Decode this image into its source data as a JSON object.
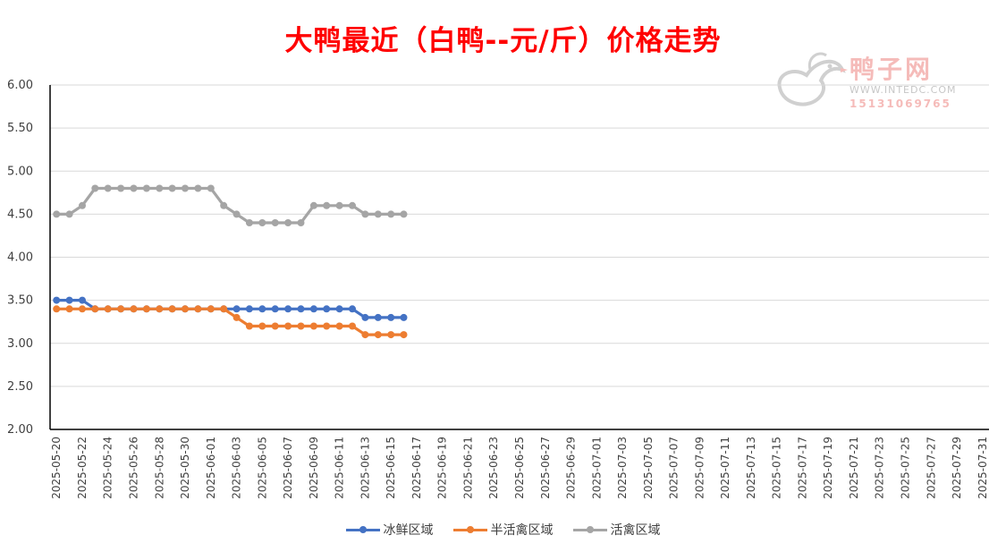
{
  "chart_data": {
    "type": "line",
    "title": "大鸭最近（白鸭--元/斤）价格走势",
    "xlabel": "",
    "ylabel": "",
    "ylim": [
      2.0,
      6.0
    ],
    "yticks": [
      "2.00",
      "2.50",
      "3.00",
      "3.50",
      "4.00",
      "4.50",
      "5.00",
      "5.50",
      "6.00"
    ],
    "x_range": [
      "2025-05-20",
      "2025-07-31"
    ],
    "x_tick_labels": [
      "2025-05-20",
      "2025-05-22",
      "2025-05-24",
      "2025-05-26",
      "2025-05-28",
      "2025-05-30",
      "2025-06-01",
      "2025-06-03",
      "2025-06-05",
      "2025-06-07",
      "2025-06-09",
      "2025-06-11",
      "2025-06-13",
      "2025-06-15",
      "2025-06-17",
      "2025-06-19",
      "2025-06-21",
      "2025-06-23",
      "2025-06-25",
      "2025-06-27",
      "2025-06-29",
      "2025-07-01",
      "2025-07-03",
      "2025-07-05",
      "2025-07-07",
      "2025-07-09",
      "2025-07-11",
      "2025-07-13",
      "2025-07-15",
      "2025-07-17",
      "2025-07-19",
      "2025-07-21",
      "2025-07-23",
      "2025-07-25",
      "2025-07-27",
      "2025-07-29",
      "2025-07-31"
    ],
    "x": [
      "2025-05-20",
      "2025-05-21",
      "2025-05-22",
      "2025-05-23",
      "2025-05-24",
      "2025-05-25",
      "2025-05-26",
      "2025-05-27",
      "2025-05-28",
      "2025-05-29",
      "2025-05-30",
      "2025-05-31",
      "2025-06-01",
      "2025-06-02",
      "2025-06-03",
      "2025-06-04",
      "2025-06-05",
      "2025-06-06",
      "2025-06-07",
      "2025-06-08",
      "2025-06-09",
      "2025-06-10",
      "2025-06-11",
      "2025-06-12",
      "2025-06-13",
      "2025-06-14",
      "2025-06-15",
      "2025-06-16"
    ],
    "series": [
      {
        "name": "冰鲜区域",
        "color": "#4472c4",
        "values": [
          3.5,
          3.5,
          3.5,
          3.4,
          3.4,
          3.4,
          3.4,
          3.4,
          3.4,
          3.4,
          3.4,
          3.4,
          3.4,
          3.4,
          3.4,
          3.4,
          3.4,
          3.4,
          3.4,
          3.4,
          3.4,
          3.4,
          3.4,
          3.4,
          3.3,
          3.3,
          3.3,
          3.3
        ]
      },
      {
        "name": "半活禽区域",
        "color": "#ed7d31",
        "values": [
          3.4,
          3.4,
          3.4,
          3.4,
          3.4,
          3.4,
          3.4,
          3.4,
          3.4,
          3.4,
          3.4,
          3.4,
          3.4,
          3.4,
          3.3,
          3.2,
          3.2,
          3.2,
          3.2,
          3.2,
          3.2,
          3.2,
          3.2,
          3.2,
          3.1,
          3.1,
          3.1,
          3.1
        ]
      },
      {
        "name": "活禽区域",
        "color": "#a5a5a5",
        "values": [
          4.5,
          4.5,
          4.6,
          4.8,
          4.8,
          4.8,
          4.8,
          4.8,
          4.8,
          4.8,
          4.8,
          4.8,
          4.8,
          4.6,
          4.5,
          4.4,
          4.4,
          4.4,
          4.4,
          4.4,
          4.6,
          4.6,
          4.6,
          4.6,
          4.5,
          4.5,
          4.5,
          4.5
        ]
      }
    ],
    "grid": "horizontal",
    "legend_position": "bottom"
  },
  "watermark": {
    "brand": "鸭子网",
    "site": "WWW.INTEDC.COM",
    "phone": "15131069765"
  },
  "colors": {
    "title": "#ff0000",
    "grid": "#d9d9d9",
    "axis": "#000000"
  }
}
